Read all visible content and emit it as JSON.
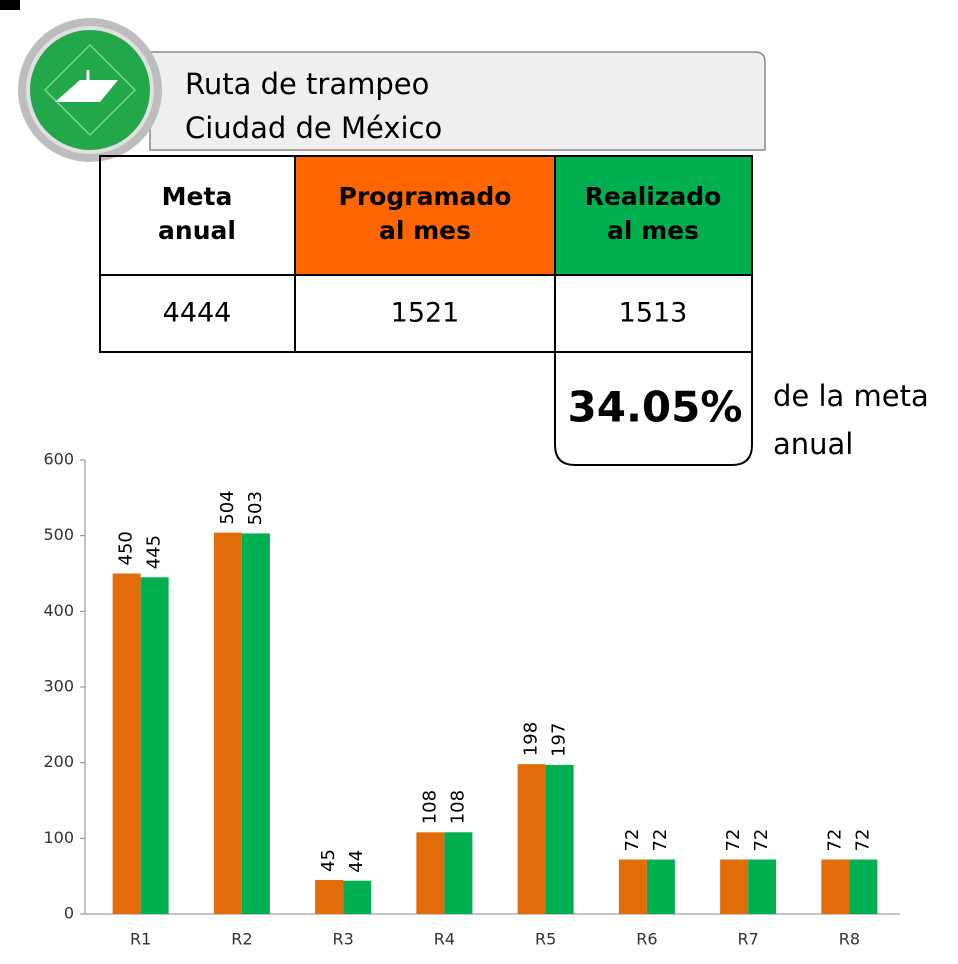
{
  "header": {
    "title": "Ruta de trampeo",
    "subtitle": "Ciudad de México"
  },
  "table": {
    "header": [
      [
        "Meta",
        "anual"
      ],
      [
        "Programado",
        "al mes"
      ],
      [
        "Realizado",
        "al mes"
      ]
    ],
    "rows": [
      [
        "4444",
        "1521",
        "1513"
      ]
    ]
  },
  "summary": {
    "percent": "34.05%",
    "caption": [
      "de la meta",
      "anual"
    ]
  },
  "chart_data": {
    "type": "bar",
    "categories": [
      "R1",
      "R2",
      "R3",
      "R4",
      "R5",
      "R6",
      "R7",
      "R8"
    ],
    "series": [
      {
        "color": "#e36c0a",
        "values": [
          450,
          504,
          45,
          108,
          198,
          72,
          72,
          72
        ]
      },
      {
        "color": "#00b050",
        "values": [
          445,
          503,
          44,
          108,
          197,
          72,
          72,
          72
        ]
      }
    ],
    "ylim": [
      0,
      600
    ],
    "yticks": [
      0,
      100,
      200,
      300,
      400,
      500,
      600
    ],
    "data_labels": true
  }
}
